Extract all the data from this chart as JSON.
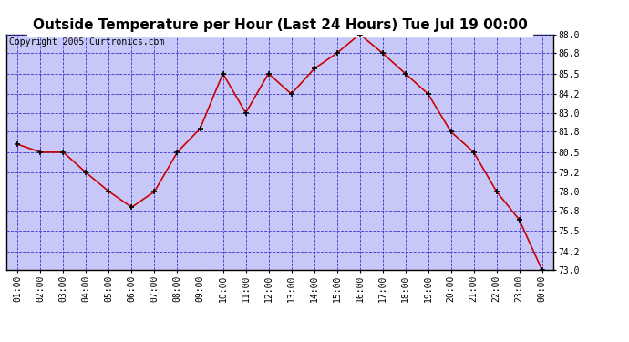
{
  "title": "Outside Temperature per Hour (Last 24 Hours) Tue Jul 19 00:00",
  "copyright": "Copyright 2005 Curtronics.com",
  "hours": [
    "01:00",
    "02:00",
    "03:00",
    "04:00",
    "05:00",
    "06:00",
    "07:00",
    "08:00",
    "09:00",
    "10:00",
    "11:00",
    "12:00",
    "13:00",
    "14:00",
    "15:00",
    "16:00",
    "17:00",
    "18:00",
    "19:00",
    "20:00",
    "21:00",
    "22:00",
    "23:00",
    "00:00"
  ],
  "temps": [
    81.0,
    80.5,
    80.5,
    79.2,
    78.0,
    77.0,
    78.0,
    80.5,
    82.0,
    85.5,
    83.0,
    85.5,
    84.2,
    85.8,
    86.8,
    88.0,
    86.8,
    85.5,
    84.2,
    81.8,
    80.5,
    78.0,
    76.2,
    73.0
  ],
  "line_color": "#cc0000",
  "marker_color": "#000000",
  "plot_bg_color": "#c8c8f8",
  "grid_color": "#3333cc",
  "border_color": "#000000",
  "fig_bg_color": "#ffffff",
  "title_bg_color": "#d8d8d8",
  "ylim_min": 73.0,
  "ylim_max": 88.0,
  "yticks": [
    73.0,
    74.2,
    75.5,
    76.8,
    78.0,
    79.2,
    80.5,
    81.8,
    83.0,
    84.2,
    85.5,
    86.8,
    88.0
  ],
  "title_fontsize": 11,
  "copyright_fontsize": 7,
  "tick_fontsize": 7
}
